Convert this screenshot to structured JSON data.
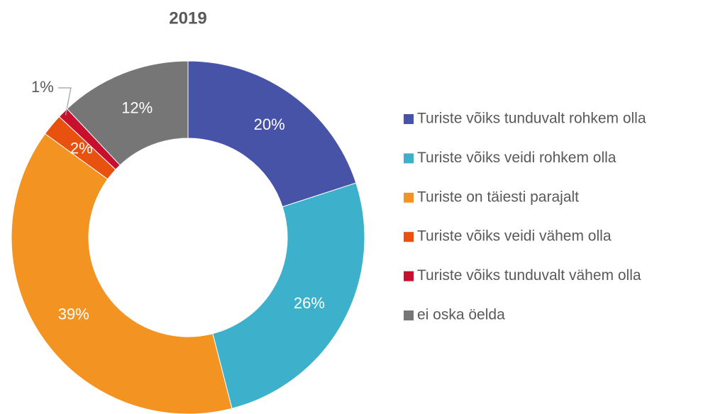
{
  "chart_data": {
    "type": "donut",
    "title": "2019",
    "categories": [
      "Turiste võiks tunduvalt rohkem olla",
      "Turiste võiks veidi rohkem olla",
      "Turiste on täiesti parajalt",
      "Turiste võiks veidi vähem olla",
      "Turiste võiks tunduvalt vähem olla",
      "ei oska öelda"
    ],
    "values": [
      20,
      26,
      39,
      2,
      1,
      12
    ],
    "value_labels": [
      "20%",
      "26%",
      "39%",
      "2%",
      "1%",
      "12%"
    ],
    "colors": [
      "#4753a6",
      "#3db0cc",
      "#f39422",
      "#e8520e",
      "#c8102e",
      "#767676"
    ],
    "legend": "right"
  }
}
